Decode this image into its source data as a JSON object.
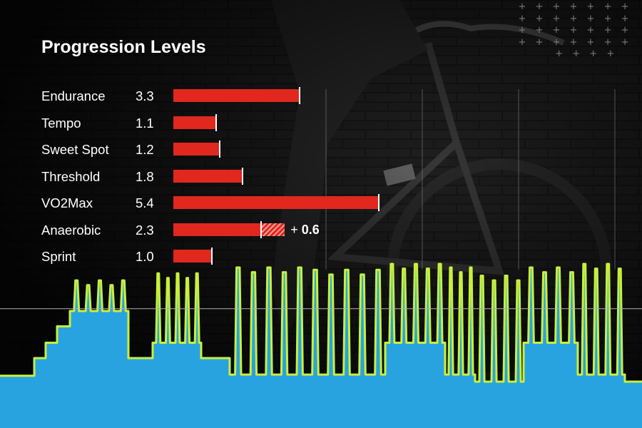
{
  "header": {
    "title": "Progression Levels"
  },
  "decor": {
    "plus_glyph": "+",
    "plus_rows": 5,
    "plus_cols": 7
  },
  "colors": {
    "bar": "#e0281f",
    "bar_marker": "#ffffff",
    "workout_fill": "#29a3e0",
    "workout_outline": "#c8f03c",
    "reference_line": "#b0b0b0"
  },
  "chart_data": [
    {
      "type": "bar",
      "orientation": "horizontal",
      "title": "Progression Levels",
      "categories": [
        "Endurance",
        "Tempo",
        "Sweet Spot",
        "Threshold",
        "VO2Max",
        "Anaerobic",
        "Sprint"
      ],
      "values": [
        3.3,
        1.1,
        1.2,
        1.8,
        5.4,
        2.3,
        1.0
      ],
      "value_labels": [
        "3.3",
        "1.1",
        "1.2",
        "1.8",
        "5.4",
        "2.3",
        "1.0"
      ],
      "increments": [
        {
          "category": "Anaerobic",
          "value": 0.6,
          "prefix": "+",
          "label": "0.6"
        }
      ],
      "xlim": [
        0,
        10
      ],
      "grid": true
    },
    {
      "type": "area",
      "description_of_series": "workout power profile",
      "x": [
        0,
        48,
        64,
        80,
        98,
        180,
        214,
        282,
        322,
        430,
        540,
        624,
        666,
        734,
        810,
        876,
        900
      ],
      "steps": [
        {
          "start": 0,
          "end": 48,
          "value": 0.05
        },
        {
          "start": 48,
          "end": 64,
          "value": 0.2
        },
        {
          "start": 64,
          "end": 80,
          "value": 0.33
        },
        {
          "start": 80,
          "end": 98,
          "value": 0.47
        },
        {
          "start": 98,
          "end": 180,
          "value": 0.6,
          "intervals": 5,
          "peak": 0.86
        },
        {
          "start": 180,
          "end": 214,
          "value": 0.2
        },
        {
          "start": 214,
          "end": 282,
          "value": 0.33,
          "intervals": 5,
          "peak": 0.92
        },
        {
          "start": 282,
          "end": 322,
          "value": 0.2
        },
        {
          "start": 322,
          "end": 430,
          "value": 0.06,
          "intervals": 5,
          "peak": 0.97
        },
        {
          "start": 430,
          "end": 540,
          "value": 0.06,
          "intervals": 5,
          "peak": 0.95
        },
        {
          "start": 540,
          "end": 624,
          "value": 0.33,
          "intervals": 5,
          "peak": 1.0
        },
        {
          "start": 624,
          "end": 666,
          "value": 0.06,
          "intervals": 3,
          "peak": 0.97
        },
        {
          "start": 666,
          "end": 734,
          "value": 0.0,
          "intervals": 4,
          "peak": 0.9
        },
        {
          "start": 734,
          "end": 810,
          "value": 0.33,
          "intervals": 4,
          "peak": 0.97
        },
        {
          "start": 810,
          "end": 876,
          "value": 0.06,
          "intervals": 4,
          "peak": 1.0
        },
        {
          "start": 876,
          "end": 900,
          "value": 0.0
        }
      ],
      "reference_line": 0.62
    }
  ]
}
